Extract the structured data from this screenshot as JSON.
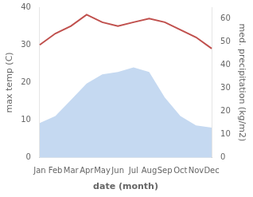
{
  "chart_data": {
    "type": "line",
    "xlabel": "date (month)",
    "ylabel": "max temp (C)",
    "y2label": "med. precipitation (kg/m2)",
    "categories": [
      "Jan",
      "Feb",
      "Mar",
      "Apr",
      "May",
      "Jun",
      "Jul",
      "Aug",
      "Sep",
      "Oct",
      "Nov",
      "Dec"
    ],
    "series": [
      {
        "type": "area",
        "axis": "y2",
        "color": "#c5d9f1",
        "values": [
          15,
          18,
          25,
          32,
          36,
          37,
          39,
          37,
          26,
          18,
          14,
          13
        ]
      },
      {
        "type": "line",
        "color": "#c0504d",
        "values": [
          30,
          33,
          35,
          38,
          36,
          35,
          36,
          37,
          36,
          34,
          32,
          29
        ]
      }
    ],
    "ylim": [
      0,
      40
    ],
    "yticks": [
      0,
      10,
      20,
      30,
      40
    ],
    "y2lim": [
      0,
      65
    ],
    "y2ticks": [
      0,
      10,
      20,
      30,
      40,
      50,
      60
    ],
    "grid": false
  }
}
